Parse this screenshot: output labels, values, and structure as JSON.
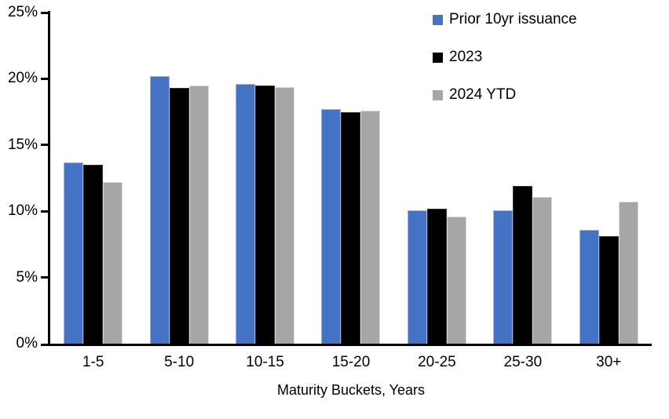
{
  "chart_data": {
    "type": "bar",
    "title": "",
    "categories": [
      "1-5",
      "5-10",
      "10-15",
      "15-20",
      "20-25",
      "25-30",
      "30+"
    ],
    "series": [
      {
        "name": "Prior 10yr issuance",
        "color": "#4472C4",
        "border_color": "#9DB7E3",
        "values": [
          13.7,
          20.2,
          19.6,
          17.7,
          10.1,
          10.1,
          8.6
        ]
      },
      {
        "name": "2023",
        "color": "#000000",
        "border_color": "#333333",
        "values": [
          13.5,
          19.3,
          19.5,
          17.5,
          10.2,
          11.9,
          8.1
        ]
      },
      {
        "name": "2024 YTD",
        "color": "#A6A6A6",
        "border_color": "#D9D9D9",
        "values": [
          12.2,
          19.5,
          19.4,
          17.6,
          9.6,
          11.1,
          10.7
        ]
      }
    ],
    "xlabel": "Maturity Buckets, Years",
    "ylabel": "",
    "ylim": [
      0,
      25
    ],
    "ytick_step": 5,
    "ytick_labels": [
      "0%",
      "5%",
      "10%",
      "15%",
      "20%",
      "25%"
    ],
    "grid": false,
    "legend_position": "top-right",
    "axis_color": "#000000",
    "background_color": "#FFFFFF"
  }
}
